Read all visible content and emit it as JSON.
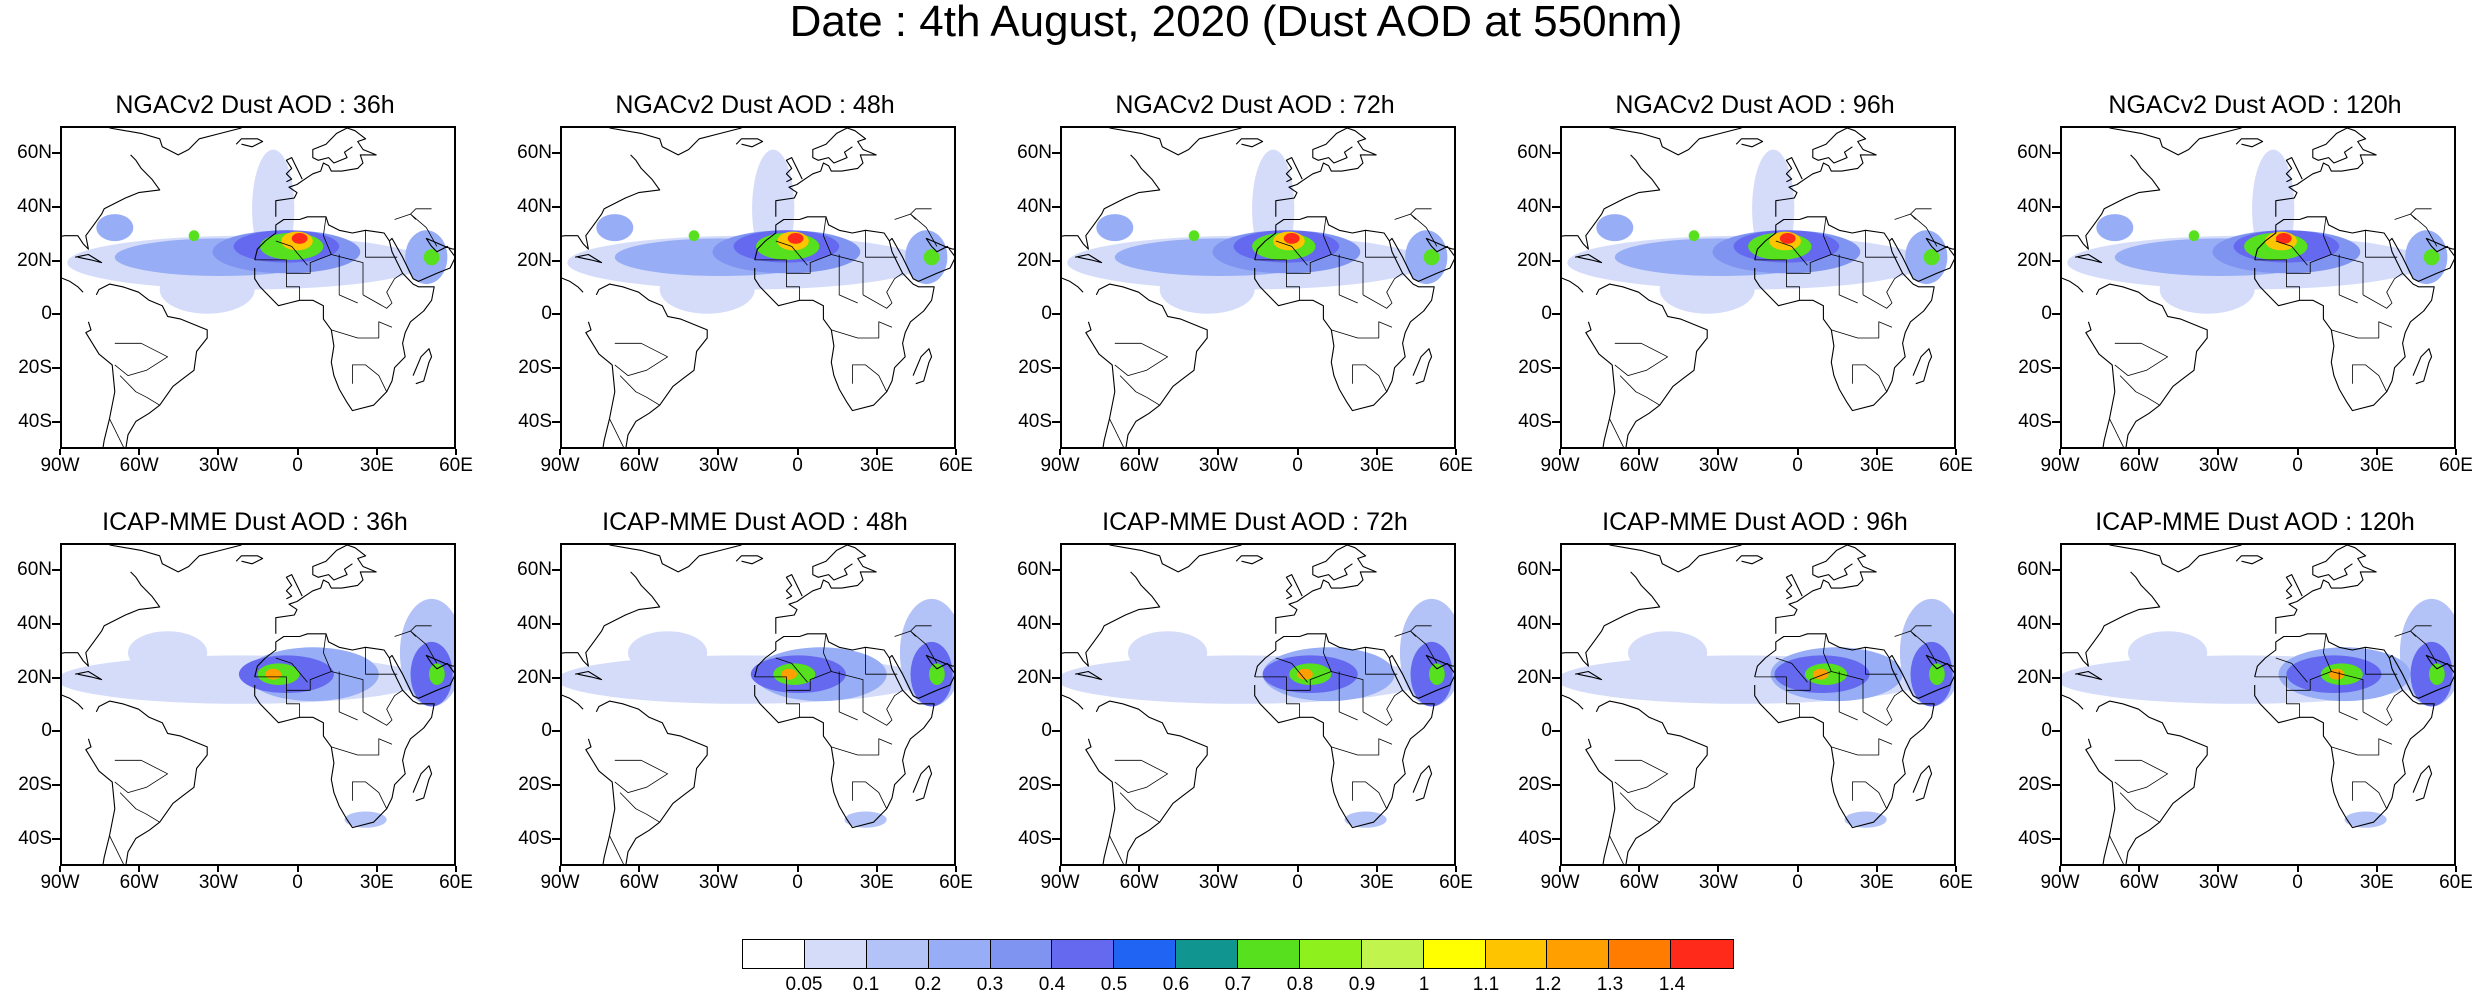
{
  "title": "Date : 4th August, 2020 (Dust AOD at 550nm)",
  "panels": [
    {
      "title": "NGACv2 Dust AOD : 36h",
      "row": 0,
      "col": 0
    },
    {
      "title": "NGACv2 Dust AOD : 48h",
      "row": 0,
      "col": 1
    },
    {
      "title": "NGACv2 Dust AOD : 72h",
      "row": 0,
      "col": 2
    },
    {
      "title": "NGACv2 Dust AOD : 96h",
      "row": 0,
      "col": 3
    },
    {
      "title": "NGACv2 Dust AOD : 120h",
      "row": 0,
      "col": 4
    },
    {
      "title": "ICAP-MME Dust AOD : 36h",
      "row": 1,
      "col": 0
    },
    {
      "title": "ICAP-MME Dust AOD : 48h",
      "row": 1,
      "col": 1
    },
    {
      "title": "ICAP-MME Dust AOD : 72h",
      "row": 1,
      "col": 2
    },
    {
      "title": "ICAP-MME Dust AOD : 96h",
      "row": 1,
      "col": 3
    },
    {
      "title": "ICAP-MME Dust AOD : 120h",
      "row": 1,
      "col": 4
    }
  ],
  "lat_ticks": [
    "60N",
    "40N",
    "20N",
    "0",
    "20S",
    "40S"
  ],
  "lon_ticks": [
    "90W",
    "60W",
    "30W",
    "0",
    "30E",
    "60E"
  ],
  "lat_values": [
    60,
    40,
    20,
    0,
    -20,
    -40
  ],
  "lon_values": [
    -90,
    -60,
    -30,
    0,
    30,
    60
  ],
  "extent": {
    "lon_min": -90,
    "lon_max": 60,
    "lat_min": -50,
    "lat_max": 70
  },
  "colorbar": {
    "labels": [
      "0.05",
      "0.1",
      "0.2",
      "0.3",
      "0.4",
      "0.5",
      "0.6",
      "0.7",
      "0.8",
      "0.9",
      "1",
      "1.1",
      "1.2",
      "1.3",
      "1.4"
    ],
    "colors": [
      "#ffffff",
      "#d4dcfa",
      "#b4c3f7",
      "#97adf5",
      "#7f93f1",
      "#6469ef",
      "#1f64f3",
      "#119591",
      "#56e01d",
      "#8ef01d",
      "#c1f44d",
      "#ffff00",
      "#ffc400",
      "#ff9f00",
      "#ff7c00",
      "#ff2a1a"
    ]
  }
}
